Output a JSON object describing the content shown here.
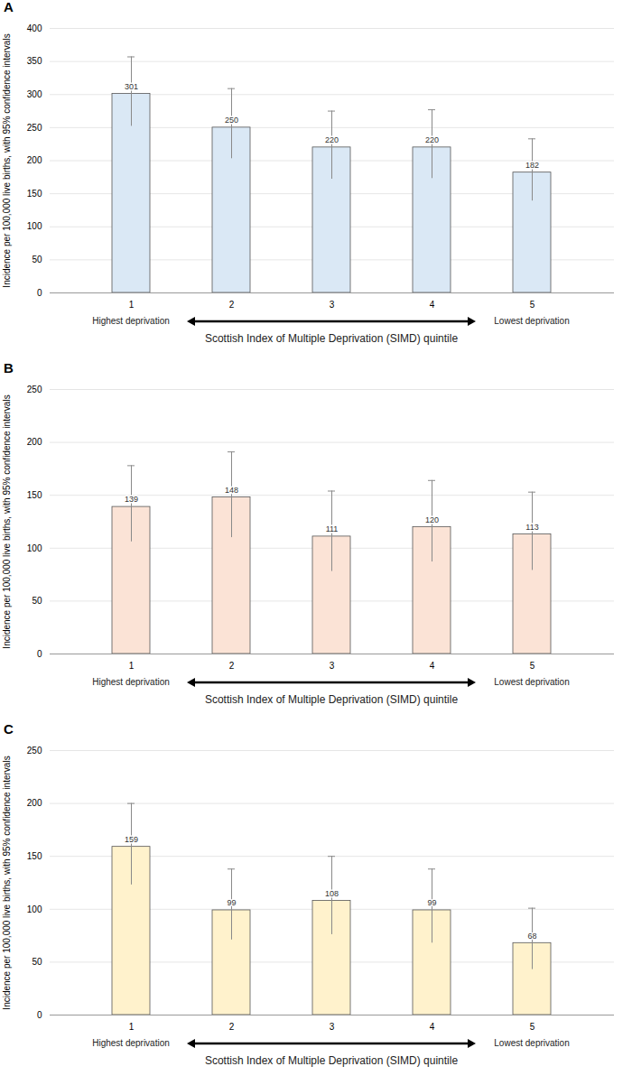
{
  "chart_data": [
    {
      "type": "bar",
      "title": "A",
      "categories": [
        "1",
        "2",
        "3",
        "4",
        "5"
      ],
      "values": [
        301,
        250,
        220,
        220,
        182
      ],
      "error_lower": [
        252,
        203,
        172,
        173,
        139
      ],
      "error_upper": [
        357,
        309,
        275,
        277,
        233
      ],
      "color": "#dae8f5",
      "ylim": [
        0,
        400
      ],
      "yticks": [
        0,
        50,
        100,
        150,
        200,
        250,
        300,
        350,
        400
      ],
      "grid": true,
      "data_labels": true,
      "y_label": "Incidence per 100,000 live births, with 95% confidence intervals",
      "x_label": "Scottish Index of Multiple Deprivation (SIMD) quintile",
      "annotations": [
        {
          "text": "Highest deprivation",
          "category": "1"
        },
        {
          "text": "Lowest deprivation",
          "category": "5"
        }
      ]
    },
    {
      "type": "bar",
      "title": "B",
      "categories": [
        "1",
        "2",
        "3",
        "4",
        "5"
      ],
      "values": [
        139,
        148,
        111,
        120,
        113
      ],
      "error_lower": [
        106,
        110,
        78,
        87,
        79
      ],
      "error_upper": [
        178,
        191,
        154,
        164,
        153
      ],
      "color": "#fbe3d6",
      "ylim": [
        0,
        250
      ],
      "yticks": [
        0,
        50,
        100,
        150,
        200,
        250
      ],
      "grid": true,
      "data_labels": true,
      "y_label": "Incidence per 100,000 live births, with 95% confidence intervals",
      "x_label": "Scottish Index of Multiple Deprivation (SIMD) quintile",
      "annotations": [
        {
          "text": "Highest deprivation",
          "category": "1"
        },
        {
          "text": "Lowest deprivation",
          "category": "5"
        }
      ]
    },
    {
      "type": "bar",
      "title": "C",
      "categories": [
        "1",
        "2",
        "3",
        "4",
        "5"
      ],
      "values": [
        159,
        99,
        108,
        99,
        68
      ],
      "error_lower": [
        123,
        71,
        76,
        68,
        43
      ],
      "error_upper": [
        200,
        138,
        150,
        138,
        101
      ],
      "color": "#fff2cc",
      "ylim": [
        0,
        250
      ],
      "yticks": [
        0,
        50,
        100,
        150,
        200,
        250
      ],
      "grid": true,
      "data_labels": true,
      "y_label": "Incidence per 100,000 live births, with 95% confidence intervals",
      "x_label": "Scottish Index of Multiple Deprivation (SIMD) quintile",
      "annotations": [
        {
          "text": "Highest deprivation",
          "category": "1"
        },
        {
          "text": "Lowest deprivation",
          "category": "5"
        }
      ]
    }
  ]
}
